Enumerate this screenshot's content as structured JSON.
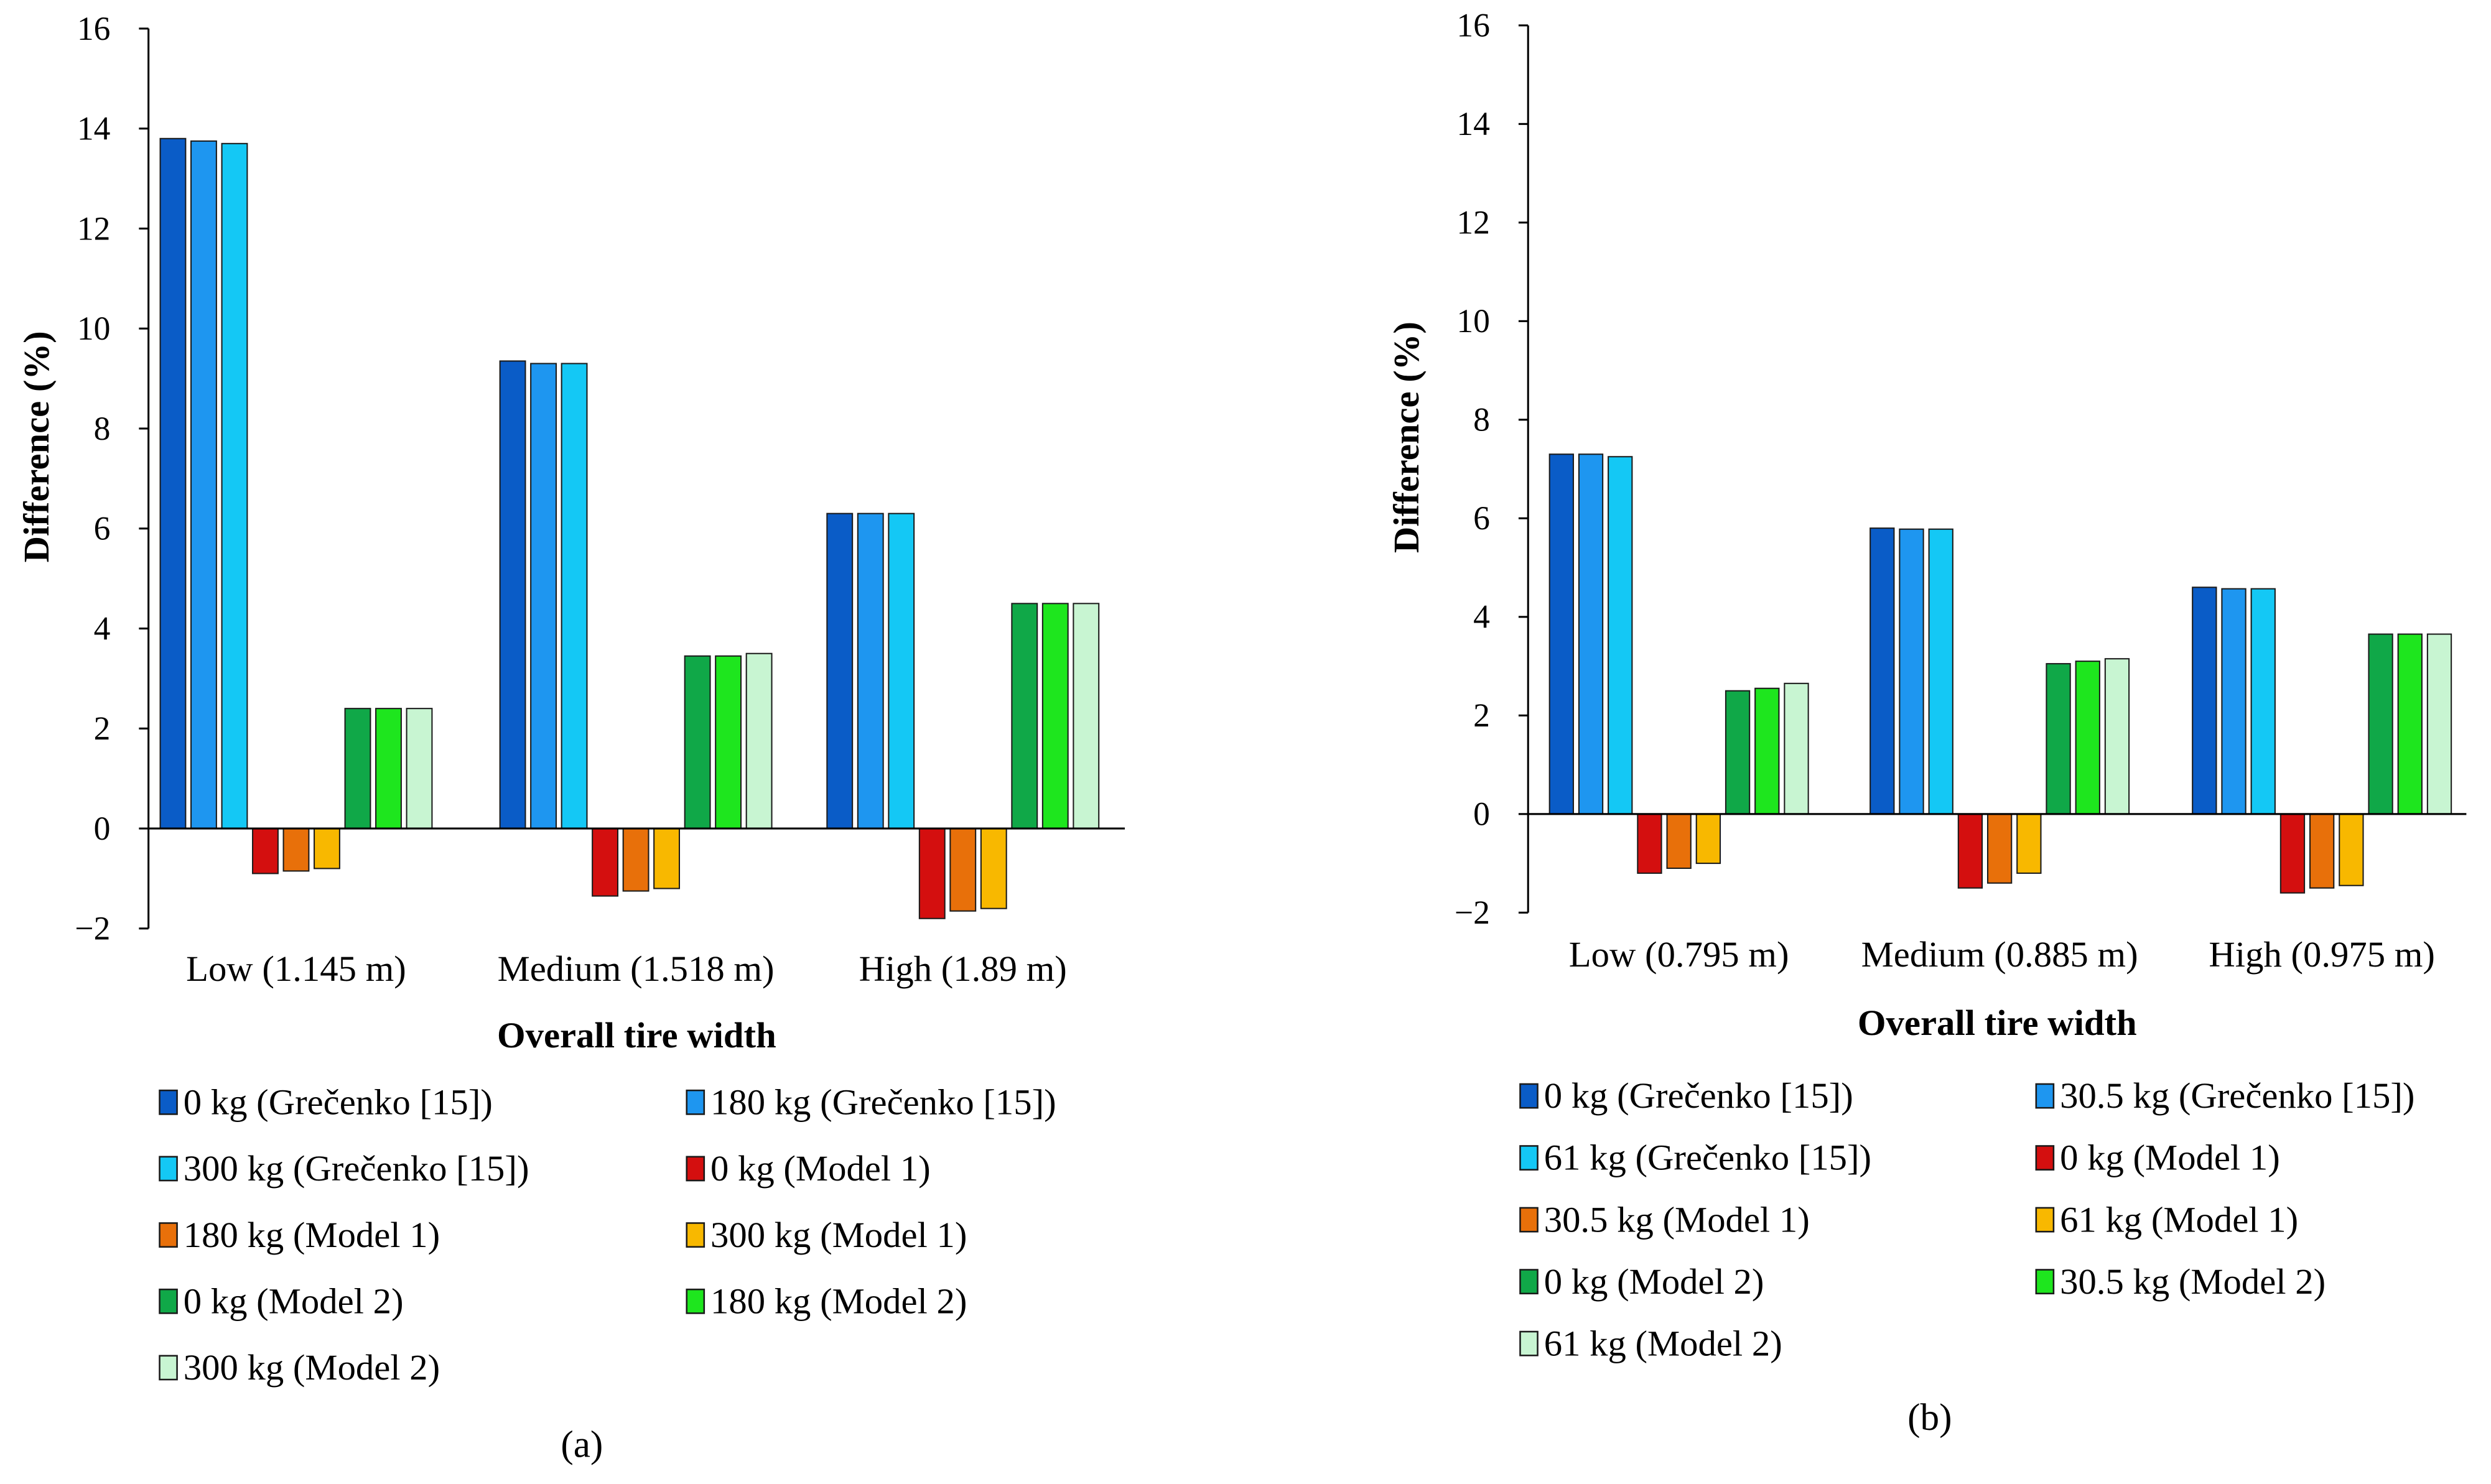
{
  "chart_data": [
    {
      "type": "bar",
      "caption": "(a)",
      "xlabel": "Overall tire width",
      "ylabel": "Difference (%)",
      "ylim": [
        -2,
        16
      ],
      "yticks": [
        -2,
        0,
        2,
        4,
        6,
        8,
        10,
        12,
        14,
        16
      ],
      "grid": false,
      "legend_position": "bottom",
      "categories": [
        "Low (1.145 m)",
        "Medium (1.518 m)",
        "High (1.89 m)"
      ],
      "series": [
        {
          "name": "0 kg (Grečenko [15])",
          "color": "#0a5cc7",
          "values": [
            13.8,
            9.35,
            6.3
          ]
        },
        {
          "name": "180 kg (Grečenko [15])",
          "color": "#1e96f0",
          "values": [
            13.75,
            9.3,
            6.3
          ]
        },
        {
          "name": "300 kg (Grečenko [15])",
          "color": "#14c8f5",
          "values": [
            13.7,
            9.3,
            6.3
          ]
        },
        {
          "name": "0 kg (Model 1)",
          "color": "#d40f0f",
          "values": [
            -0.9,
            -1.35,
            -1.8
          ]
        },
        {
          "name": "180 kg (Model 1)",
          "color": "#e8700a",
          "values": [
            -0.85,
            -1.25,
            -1.65
          ]
        },
        {
          "name": "300 kg (Model 1)",
          "color": "#f8b800",
          "values": [
            -0.8,
            -1.2,
            -1.6
          ]
        },
        {
          "name": "0 kg (Model 2)",
          "color": "#10a848",
          "values": [
            2.4,
            3.45,
            4.5
          ]
        },
        {
          "name": "180 kg (Model 2)",
          "color": "#1ee61e",
          "values": [
            2.4,
            3.45,
            4.5
          ]
        },
        {
          "name": "300 kg (Model 2)",
          "color": "#c8f5d2",
          "values": [
            2.4,
            3.5,
            4.5
          ]
        }
      ]
    },
    {
      "type": "bar",
      "caption": "(b)",
      "xlabel": "Overall tire width",
      "ylabel": "Difference (%)",
      "ylim": [
        -2,
        16
      ],
      "yticks": [
        -2,
        0,
        2,
        4,
        6,
        8,
        10,
        12,
        14,
        16
      ],
      "grid": false,
      "legend_position": "bottom",
      "categories": [
        "Low (0.795 m)",
        "Medium (0.885 m)",
        "High (0.975 m)"
      ],
      "series": [
        {
          "name": "0 kg (Grečenko [15])",
          "color": "#0a5cc7",
          "values": [
            7.3,
            5.8,
            4.6
          ]
        },
        {
          "name": "30.5 kg (Grečenko [15])",
          "color": "#1e96f0",
          "values": [
            7.3,
            5.78,
            4.57
          ]
        },
        {
          "name": "61 kg (Grečenko [15])",
          "color": "#14c8f5",
          "values": [
            7.25,
            5.78,
            4.57
          ]
        },
        {
          "name": "0 kg (Model 1)",
          "color": "#d40f0f",
          "values": [
            -1.2,
            -1.5,
            -1.6
          ]
        },
        {
          "name": "30.5 kg (Model 1)",
          "color": "#e8700a",
          "values": [
            -1.1,
            -1.4,
            -1.5
          ]
        },
        {
          "name": "61 kg (Model 1)",
          "color": "#f8b800",
          "values": [
            -1.0,
            -1.2,
            -1.45
          ]
        },
        {
          "name": "0 kg (Model 2)",
          "color": "#10a848",
          "values": [
            2.5,
            3.05,
            3.65
          ]
        },
        {
          "name": "30.5 kg (Model 2)",
          "color": "#1ee61e",
          "values": [
            2.55,
            3.1,
            3.65
          ]
        },
        {
          "name": "61 kg (Model 2)",
          "color": "#c8f5d2",
          "values": [
            2.65,
            3.15,
            3.65
          ]
        }
      ]
    }
  ]
}
